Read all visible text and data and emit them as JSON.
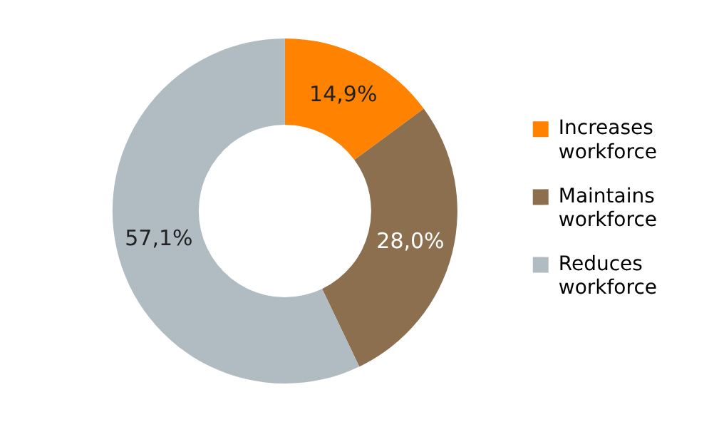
{
  "chart_data": {
    "type": "donut",
    "categories": [
      "Increases workforce",
      "Maintains workforce",
      "Reduces workforce"
    ],
    "values": [
      14.9,
      28.0,
      57.1
    ],
    "colors": [
      "#ff8200",
      "#8b6f4e",
      "#b0bcc1"
    ],
    "value_labels": [
      "14,9%",
      "28,0%",
      "57,1%"
    ],
    "legend": "right"
  }
}
